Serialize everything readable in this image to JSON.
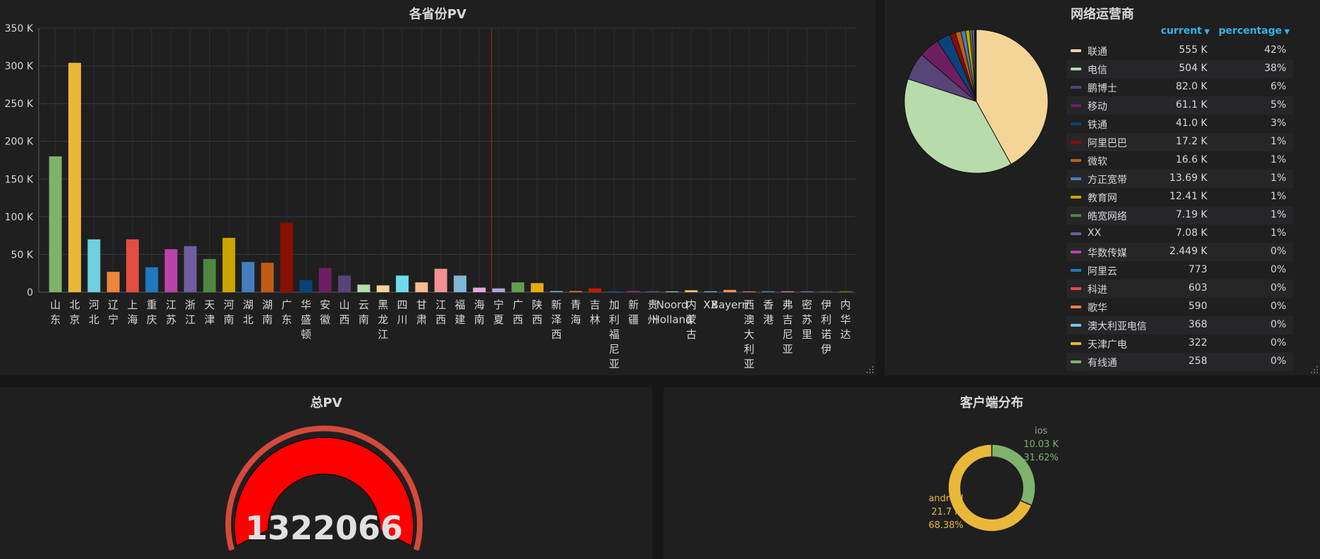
{
  "panels": {
    "province_pv": {
      "title": "各省份PV"
    },
    "isp": {
      "title": "网络运营商",
      "col_current": "current",
      "col_percentage": "percentage"
    },
    "total_pv": {
      "title": "总PV",
      "value": "1322066"
    },
    "client": {
      "title": "客户端分布"
    }
  },
  "isp_rows": [
    {
      "name": "联通",
      "current": "555 K",
      "pct": "42%",
      "color": "#f4d598"
    },
    {
      "name": "电信",
      "current": "504 K",
      "pct": "38%",
      "color": "#b7dbab"
    },
    {
      "name": "鹏博士",
      "current": "82.0 K",
      "pct": "6%",
      "color": "#584477"
    },
    {
      "name": "移动",
      "current": "61.1 K",
      "pct": "5%",
      "color": "#6d1f62"
    },
    {
      "name": "铁通",
      "current": "41.0 K",
      "pct": "3%",
      "color": "#0a437c"
    },
    {
      "name": "阿里巴巴",
      "current": "17.2 K",
      "pct": "1%",
      "color": "#890f02"
    },
    {
      "name": "微软",
      "current": "16.6 K",
      "pct": "1%",
      "color": "#c15c17"
    },
    {
      "name": "方正宽带",
      "current": "13.69 K",
      "pct": "1%",
      "color": "#447ebc"
    },
    {
      "name": "教育网",
      "current": "12.41 K",
      "pct": "1%",
      "color": "#cca300"
    },
    {
      "name": "皓宽网络",
      "current": "7.19 K",
      "pct": "1%",
      "color": "#508642"
    },
    {
      "name": "XX",
      "current": "7.08 K",
      "pct": "1%",
      "color": "#705da0"
    },
    {
      "name": "华数传媒",
      "current": "2.449 K",
      "pct": "0%",
      "color": "#ba43a9"
    },
    {
      "name": "阿里云",
      "current": "773",
      "pct": "0%",
      "color": "#1f78c1"
    },
    {
      "name": "科进",
      "current": "603",
      "pct": "0%",
      "color": "#e24d42"
    },
    {
      "name": "歌华",
      "current": "590",
      "pct": "0%",
      "color": "#ef843c"
    },
    {
      "name": "澳大利亚电信",
      "current": "368",
      "pct": "0%",
      "color": "#6ed0e0"
    },
    {
      "name": "天津广电",
      "current": "322",
      "pct": "0%",
      "color": "#eab839"
    },
    {
      "name": "有线通",
      "current": "258",
      "pct": "0%",
      "color": "#7eb26d"
    }
  ],
  "chart_data": [
    {
      "type": "bar",
      "title": "各省份PV",
      "ylim": [
        0,
        350000
      ],
      "yticks": [
        "0",
        "50 K",
        "100 K",
        "150 K",
        "200 K",
        "250 K",
        "300 K",
        "350 K"
      ],
      "grid": true,
      "categories": [
        {
          "name": "山东",
          "value": 180000,
          "color": "#7eb26d"
        },
        {
          "name": "北京",
          "value": 304000,
          "color": "#eab839"
        },
        {
          "name": "河北",
          "value": 70000,
          "color": "#6ed0e0"
        },
        {
          "name": "辽宁",
          "value": 27000,
          "color": "#ef843c"
        },
        {
          "name": "上海",
          "value": 70000,
          "color": "#e24d42"
        },
        {
          "name": "重庆",
          "value": 33000,
          "color": "#1f78c1"
        },
        {
          "name": "江苏",
          "value": 57000,
          "color": "#ba43a9"
        },
        {
          "name": "浙江",
          "value": 61000,
          "color": "#705da0"
        },
        {
          "name": "天津",
          "value": 44000,
          "color": "#508642"
        },
        {
          "name": "河南",
          "value": 72000,
          "color": "#cca300"
        },
        {
          "name": "湖北",
          "value": 40000,
          "color": "#447ebc"
        },
        {
          "name": "湖南",
          "value": 39000,
          "color": "#c15c17"
        },
        {
          "name": "广东",
          "value": 92000,
          "color": "#890f02"
        },
        {
          "name": "华盛顿",
          "value": 16000,
          "color": "#0a437c"
        },
        {
          "name": "安徽",
          "value": 32000,
          "color": "#6d1f62"
        },
        {
          "name": "山西",
          "value": 22000,
          "color": "#584477"
        },
        {
          "name": "云南",
          "value": 10000,
          "color": "#b7dbab"
        },
        {
          "name": "黑龙江",
          "value": 9000,
          "color": "#f4d598"
        },
        {
          "name": "四川",
          "value": 22000,
          "color": "#70dbed"
        },
        {
          "name": "甘肃",
          "value": 13000,
          "color": "#f9ba8f"
        },
        {
          "name": "江西",
          "value": 31000,
          "color": "#f29191"
        },
        {
          "name": "福建",
          "value": 22000,
          "color": "#82b5d8"
        },
        {
          "name": "海南",
          "value": 6000,
          "color": "#e5a8e2"
        },
        {
          "name": "宁夏",
          "value": 5000,
          "color": "#aea2e0"
        },
        {
          "name": "广西",
          "value": 13000,
          "color": "#629e51"
        },
        {
          "name": "陕西",
          "value": 12000,
          "color": "#e5ac0e"
        },
        {
          "name": "新泽西",
          "value": 1500,
          "color": "#64b0c8"
        },
        {
          "name": "青海",
          "value": 1500,
          "color": "#e0752d"
        },
        {
          "name": "吉林",
          "value": 5000,
          "color": "#bf1b00"
        },
        {
          "name": "加利福尼亚",
          "value": 1200,
          "color": "#0a50a1"
        },
        {
          "name": "新疆",
          "value": 1500,
          "color": "#962d82"
        },
        {
          "name": "贵州",
          "value": 1200,
          "color": "#614d93"
        },
        {
          "name": "Noord-Holland",
          "value": 1000,
          "color": "#9ac48a"
        },
        {
          "name": "内蒙古",
          "value": 2500,
          "color": "#f2c96d"
        },
        {
          "name": "XX",
          "value": 1000,
          "color": "#65c5db"
        },
        {
          "name": "Bayern",
          "value": 3000,
          "color": "#f9934e"
        },
        {
          "name": "西澳大利亚",
          "value": 500,
          "color": "#ea6460"
        },
        {
          "name": "香港",
          "value": 500,
          "color": "#5195ce"
        },
        {
          "name": "弗吉尼亚",
          "value": 400,
          "color": "#d683ce"
        },
        {
          "name": "密苏里",
          "value": 300,
          "color": "#806eb7"
        },
        {
          "name": "伊利诺伊",
          "value": 300,
          "color": "#3f6833"
        },
        {
          "name": "内华达",
          "value": 200,
          "color": "#967302"
        }
      ]
    },
    {
      "type": "pie",
      "title": "网络运营商",
      "slices": [
        {
          "name": "联通",
          "value": 555000
        },
        {
          "name": "电信",
          "value": 504000
        },
        {
          "name": "鹏博士",
          "value": 82000
        },
        {
          "name": "移动",
          "value": 61100
        },
        {
          "name": "铁通",
          "value": 41000
        },
        {
          "name": "阿里巴巴",
          "value": 17200
        },
        {
          "name": "微软",
          "value": 16600
        },
        {
          "name": "方正宽带",
          "value": 13690
        },
        {
          "name": "教育网",
          "value": 12410
        },
        {
          "name": "皓宽网络",
          "value": 7190
        },
        {
          "name": "XX",
          "value": 7080
        },
        {
          "name": "华数传媒",
          "value": 2449
        },
        {
          "name": "阿里云",
          "value": 773
        },
        {
          "name": "科进",
          "value": 603
        },
        {
          "name": "歌华",
          "value": 590
        },
        {
          "name": "澳大利亚电信",
          "value": 368
        },
        {
          "name": "天津广电",
          "value": 322
        },
        {
          "name": "有线通",
          "value": 258
        }
      ]
    },
    {
      "type": "pie",
      "title": "客户端分布",
      "donut": true,
      "slices": [
        {
          "name": "ios",
          "value": 10030,
          "value_label": "10.03 K",
          "pct_label": "31.62%",
          "color": "#7eb26d"
        },
        {
          "name": "android",
          "value": 21700,
          "value_label": "21.7 K",
          "pct_label": "68.38%",
          "color": "#eab839"
        }
      ]
    }
  ]
}
